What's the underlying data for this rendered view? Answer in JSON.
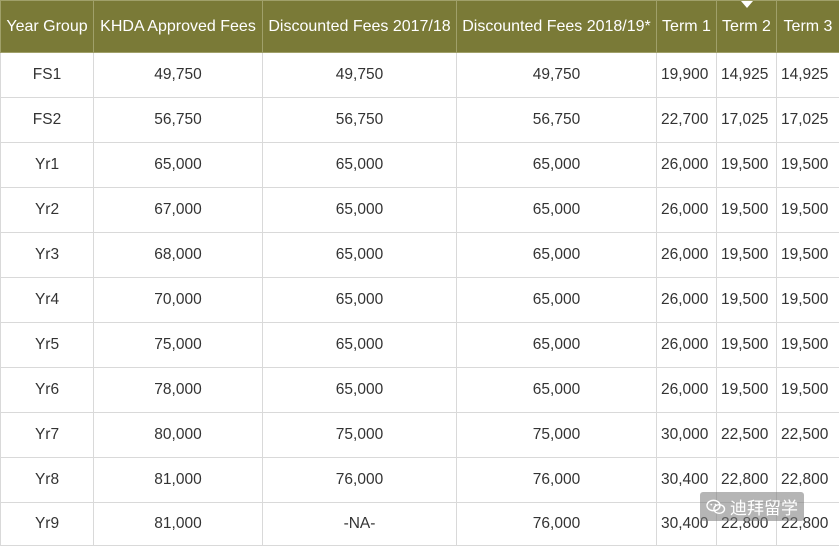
{
  "table": {
    "headers": [
      "Year Group",
      "KHDA Approved Fees",
      "Discounted Fees 2017/18",
      "Discounted Fees 2018/19*",
      "Term 1",
      "Term 2",
      "Term 3"
    ],
    "rows": [
      [
        "FS1",
        "49,750",
        "49,750",
        "49,750",
        "19,900",
        "14,925",
        "14,925"
      ],
      [
        "FS2",
        "56,750",
        "56,750",
        "56,750",
        "22,700",
        "17,025",
        "17,025"
      ],
      [
        "Yr1",
        "65,000",
        "65,000",
        "65,000",
        "26,000",
        "19,500",
        "19,500"
      ],
      [
        "Yr2",
        "67,000",
        "65,000",
        "65,000",
        "26,000",
        "19,500",
        "19,500"
      ],
      [
        "Yr3",
        "68,000",
        "65,000",
        "65,000",
        "26,000",
        "19,500",
        "19,500"
      ],
      [
        "Yr4",
        "70,000",
        "65,000",
        "65,000",
        "26,000",
        "19,500",
        "19,500"
      ],
      [
        "Yr5",
        "75,000",
        "65,000",
        "65,000",
        "26,000",
        "19,500",
        "19,500"
      ],
      [
        "Yr6",
        "78,000",
        "65,000",
        "65,000",
        "26,000",
        "19,500",
        "19,500"
      ],
      [
        "Yr7",
        "80,000",
        "75,000",
        "75,000",
        "30,000",
        "22,500",
        "22,500"
      ],
      [
        "Yr8",
        "81,000",
        "76,000",
        "76,000",
        "30,400",
        "22,800",
        "22,800"
      ],
      [
        "Yr9",
        "81,000",
        "-NA-",
        "76,000",
        "30,400",
        "22,800",
        "22,800"
      ]
    ]
  },
  "watermark": {
    "text": "迪拜留学",
    "icon": "wechat-icon"
  },
  "colors": {
    "header_bg": "#7a7a37",
    "header_text": "#ffffff",
    "border": "#d9d9d9"
  }
}
